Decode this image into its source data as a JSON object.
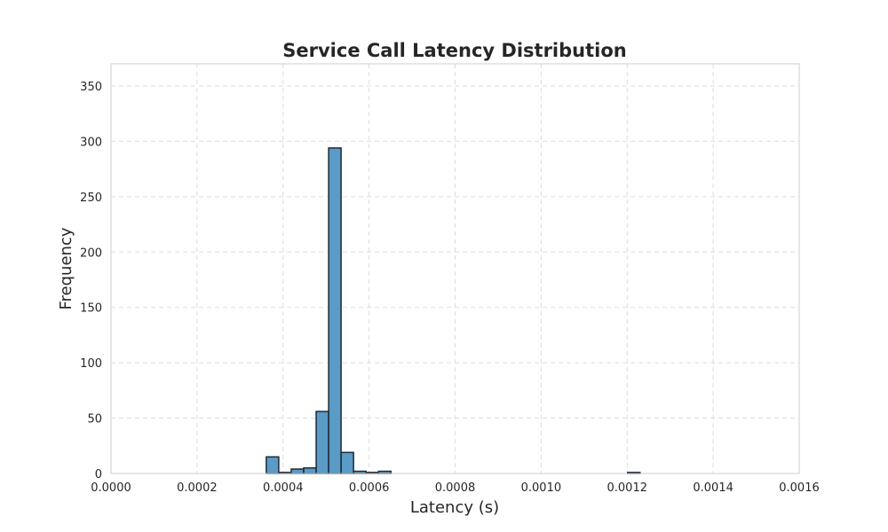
{
  "chart_data": {
    "type": "bar",
    "title": "Service Call Latency Distribution",
    "xlabel": "Latency (s)",
    "ylabel": "Frequency",
    "xlim": [
      0.0,
      0.0016
    ],
    "ylim": [
      0,
      370
    ],
    "xticks": [
      "0.0000",
      "0.0002",
      "0.0004",
      "0.0006",
      "0.0008",
      "0.0010",
      "0.0012",
      "0.0014",
      "0.0016"
    ],
    "yticks": [
      "0",
      "50",
      "100",
      "150",
      "200",
      "250",
      "300",
      "350"
    ],
    "grid": true,
    "bar_color": "#5a9bc7",
    "edge_color": "#1f2a36",
    "bin_width": 2.89e-05,
    "bin_starts": [
      0.000361,
      0.00039,
      0.000419,
      0.000448,
      0.000477,
      0.000506,
      0.000535,
      0.000564,
      0.000593,
      0.000622,
      0.00065,
      0.00068,
      0.000709,
      0.000738,
      0.000767,
      0.000796,
      0.000825,
      0.000854,
      0.000883,
      0.000911,
      0.00094,
      0.000969,
      0.000998,
      0.001027,
      0.001056,
      0.001085,
      0.001114,
      0.001143,
      0.001172,
      0.001201
    ],
    "values": [
      15,
      1,
      4,
      5,
      56,
      294,
      19,
      2,
      1,
      2,
      0,
      0,
      0,
      0,
      0,
      0,
      0,
      0,
      0,
      0,
      0,
      0,
      0,
      0,
      0,
      0,
      0,
      0,
      0,
      1
    ]
  }
}
